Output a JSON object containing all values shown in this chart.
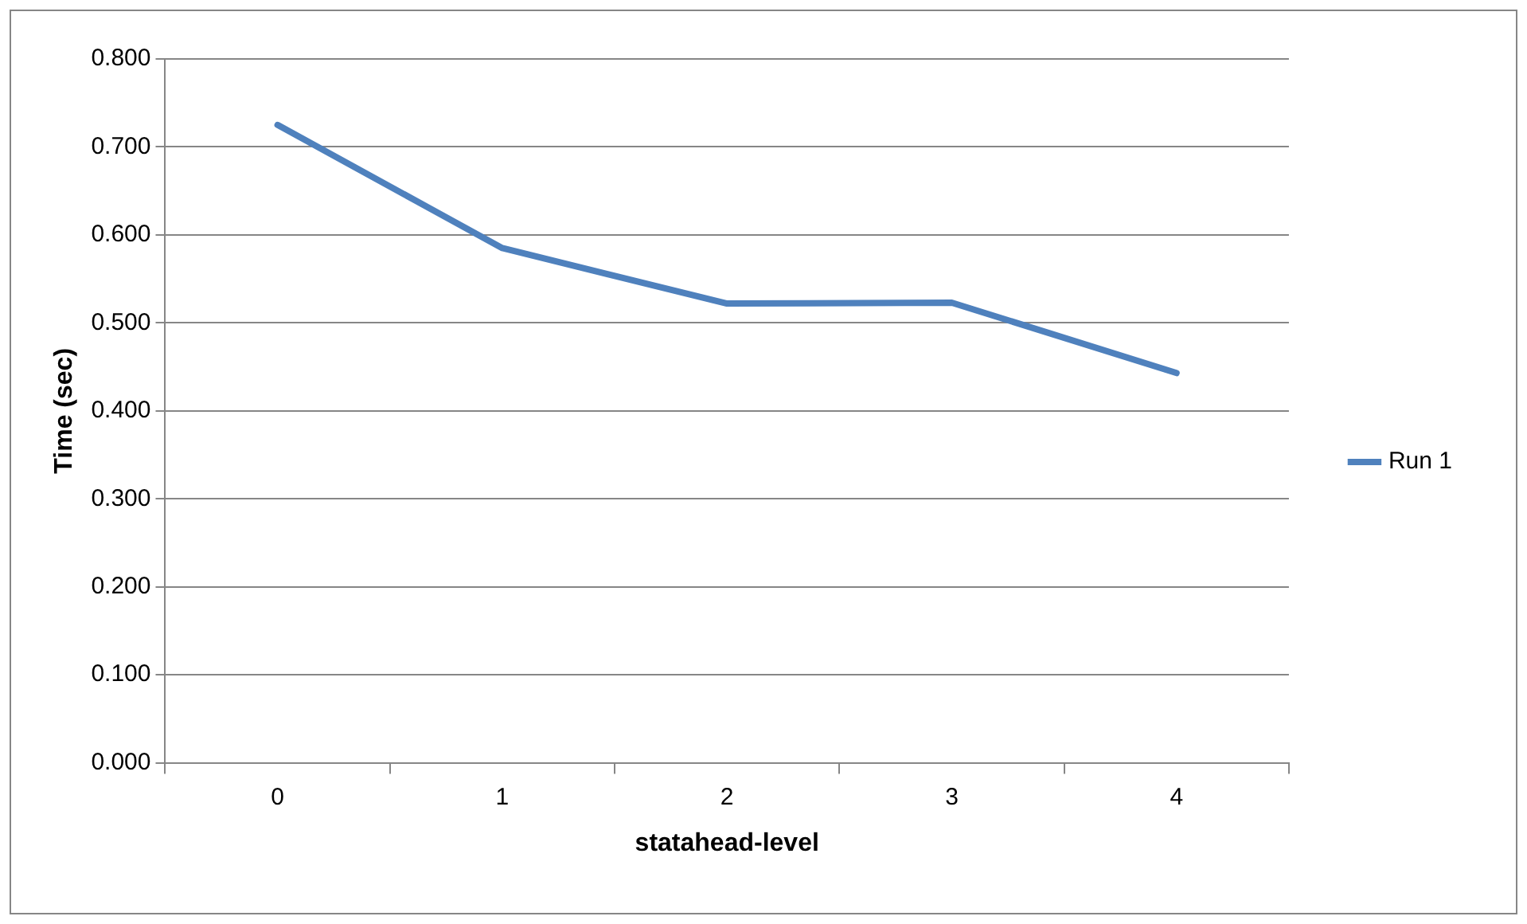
{
  "chart_data": {
    "type": "line",
    "xlabel": "statahead-level",
    "ylabel": "Time (sec)",
    "categories": [
      "0",
      "1",
      "2",
      "3",
      "4"
    ],
    "series": [
      {
        "name": "Run 1",
        "color": "#4f81bd",
        "values": [
          0.725,
          0.585,
          0.522,
          0.523,
          0.443
        ]
      }
    ],
    "ylim": [
      0,
      0.8
    ],
    "yticks": [
      {
        "value": 0,
        "label": "0.000"
      },
      {
        "value": 0.1,
        "label": "0.100"
      },
      {
        "value": 0.2,
        "label": "0.200"
      },
      {
        "value": 0.3,
        "label": "0.300"
      },
      {
        "value": 0.4,
        "label": "0.400"
      },
      {
        "value": 0.5,
        "label": "0.500"
      },
      {
        "value": 0.6,
        "label": "0.600"
      },
      {
        "value": 0.7,
        "label": "0.700"
      },
      {
        "value": 0.8,
        "label": "0.800"
      }
    ],
    "grid": "y",
    "legend": "right",
    "marker": "none",
    "line_style": "solid"
  }
}
